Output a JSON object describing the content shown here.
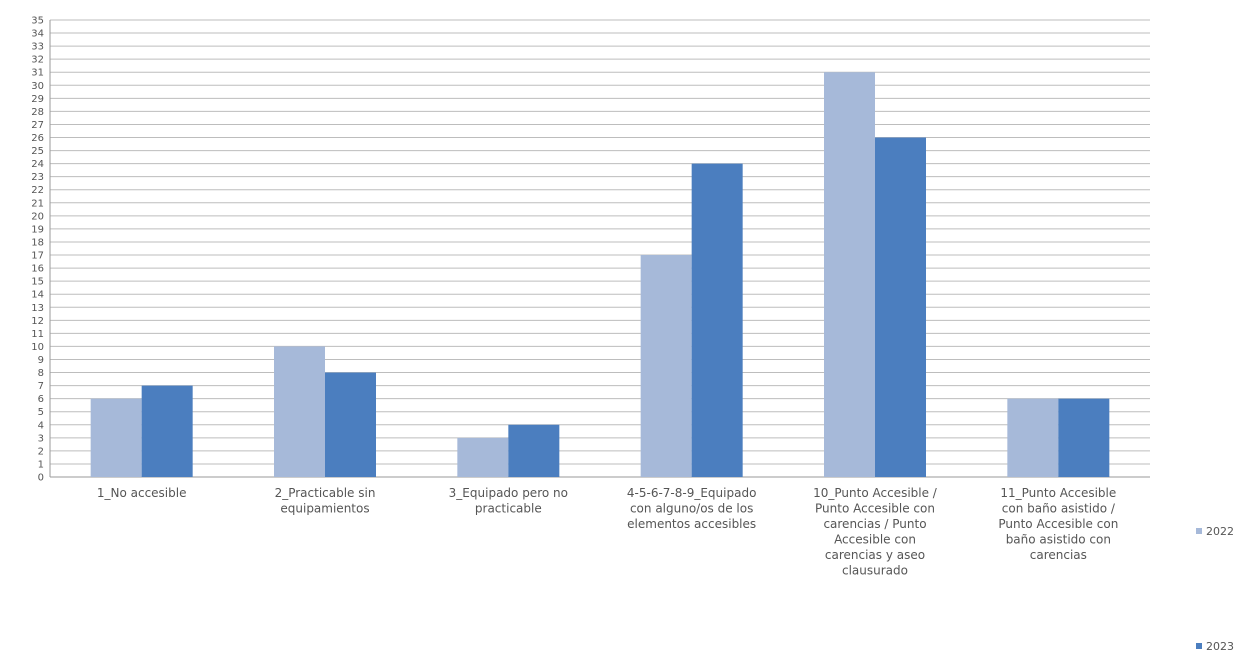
{
  "chart_data": {
    "type": "bar",
    "title": "",
    "xlabel": "",
    "ylabel": "",
    "ylim": [
      0,
      35
    ],
    "yticks": [
      "0",
      "1",
      "2",
      "3",
      "4",
      "5",
      "6",
      "7",
      "8",
      "9",
      "10",
      "11",
      "12",
      "13",
      "14",
      "15",
      "16",
      "17",
      "18",
      "19",
      "20",
      "21",
      "22",
      "23",
      "24",
      "25",
      "26",
      "27",
      "28",
      "29",
      "30",
      "31",
      "32",
      "33",
      "34",
      "35"
    ],
    "grid": true,
    "legend_position": "right",
    "categories": [
      [
        "1_No accesible"
      ],
      [
        "2_Practicable sin",
        "equipamientos"
      ],
      [
        "3_Equipado pero no",
        "practicable"
      ],
      [
        "4-5-6-7-8-9_Equipado",
        "con alguno/os de los",
        "elementos accesibles"
      ],
      [
        "10_Punto Accesible /",
        "Punto Accesible con",
        "carencias / Punto",
        "Accesible con",
        "carencias y aseo",
        "clausurado"
      ],
      [
        "11_Punto Accesible",
        "con baño asistido /",
        "Punto Accesible con",
        "baño asistido con",
        "carencias"
      ]
    ],
    "series": [
      {
        "name": "2022",
        "color": "#a6b9d9",
        "values": [
          6,
          10,
          3,
          17,
          31,
          6
        ]
      },
      {
        "name": "2023",
        "color": "#4b7ebf",
        "values": [
          7,
          8,
          4,
          24,
          26,
          6
        ]
      }
    ]
  }
}
